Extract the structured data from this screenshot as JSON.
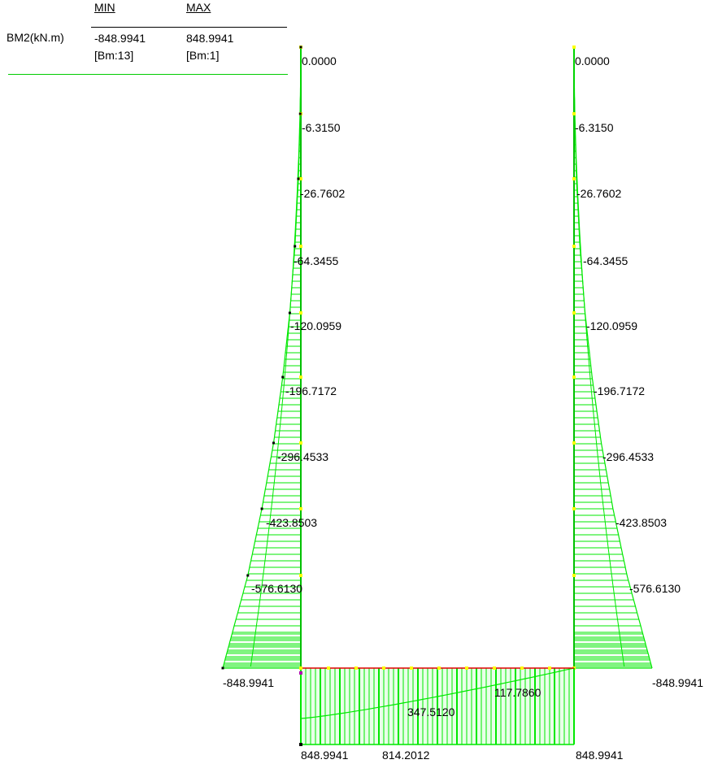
{
  "legend": {
    "quantity": "BM2(kN.m)",
    "min_header": "MIN",
    "max_header": "MAX",
    "min_value": "-848.9941",
    "max_value": "848.9941",
    "min_beam": "[Bm:13]",
    "max_beam": "[Bm:1]"
  },
  "colors": {
    "diagram": "#00e800",
    "member": "#00c000",
    "beam_top": "#e00000",
    "node_marker": "#ffff00",
    "node_dot": "#000000",
    "legend_rule": "#00cc00"
  },
  "left_column": {
    "labels": [
      "0.0000",
      "-6.3150",
      "-26.7602",
      "-64.3455",
      "-120.0959",
      "-196.7172",
      "-296.4533",
      "-423.8503",
      "-576.6130",
      "-848.9941"
    ],
    "values": [
      0,
      -6.315,
      -26.7602,
      -64.3455,
      -120.0959,
      -196.7172,
      -296.4533,
      -423.8503,
      -576.613,
      -848.9941
    ]
  },
  "right_column": {
    "labels": [
      "0.0000",
      "-6.3150",
      "-26.7602",
      "-64.3455",
      "-120.0959",
      "-196.7172",
      "-296.4533",
      "-423.8503",
      "-576.6130",
      "-848.9941"
    ],
    "values": [
      0,
      -6.315,
      -26.7602,
      -64.3455,
      -120.0959,
      -196.7172,
      -296.4533,
      -423.8503,
      -576.613,
      -848.9941
    ]
  },
  "beam": {
    "labels": {
      "left_end": "848.9941",
      "first_span": "814.2012",
      "mid": "347.5120",
      "quarter": "117.7860",
      "right_end": "848.9941"
    },
    "values": {
      "left_end": 848.9941,
      "first_span": 814.2012,
      "mid": 347.512,
      "quarter": 117.786,
      "right_end": 848.9941
    }
  }
}
